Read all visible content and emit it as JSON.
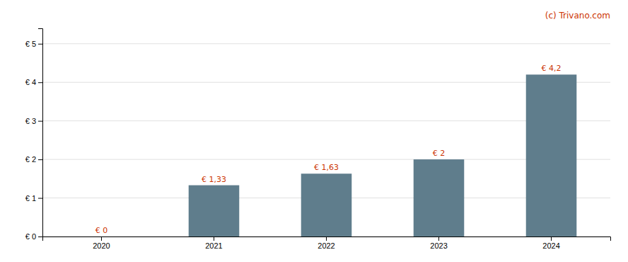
{
  "chart_data": {
    "type": "bar",
    "categories": [
      "2020",
      "2021",
      "2022",
      "2023",
      "2024"
    ],
    "values": [
      0,
      1.33,
      1.63,
      2.0,
      4.2
    ],
    "value_labels": [
      "€ 0",
      "€ 1,33",
      "€ 1,63",
      "€ 2",
      "€ 4,2"
    ],
    "data_labels": true,
    "color": "#5f7d8c",
    "ylim": [
      0,
      5.4
    ],
    "yticks": [
      {
        "value": 0,
        "label": "€ 0"
      },
      {
        "value": 1,
        "label": "€ 1"
      },
      {
        "value": 2,
        "label": "€ 2"
      },
      {
        "value": 3,
        "label": "€ 3"
      },
      {
        "value": 4,
        "label": "€ 4"
      },
      {
        "value": 5,
        "label": "€ 5"
      }
    ],
    "grid": true,
    "annotations": [
      "(c) Trivano.com"
    ]
  }
}
